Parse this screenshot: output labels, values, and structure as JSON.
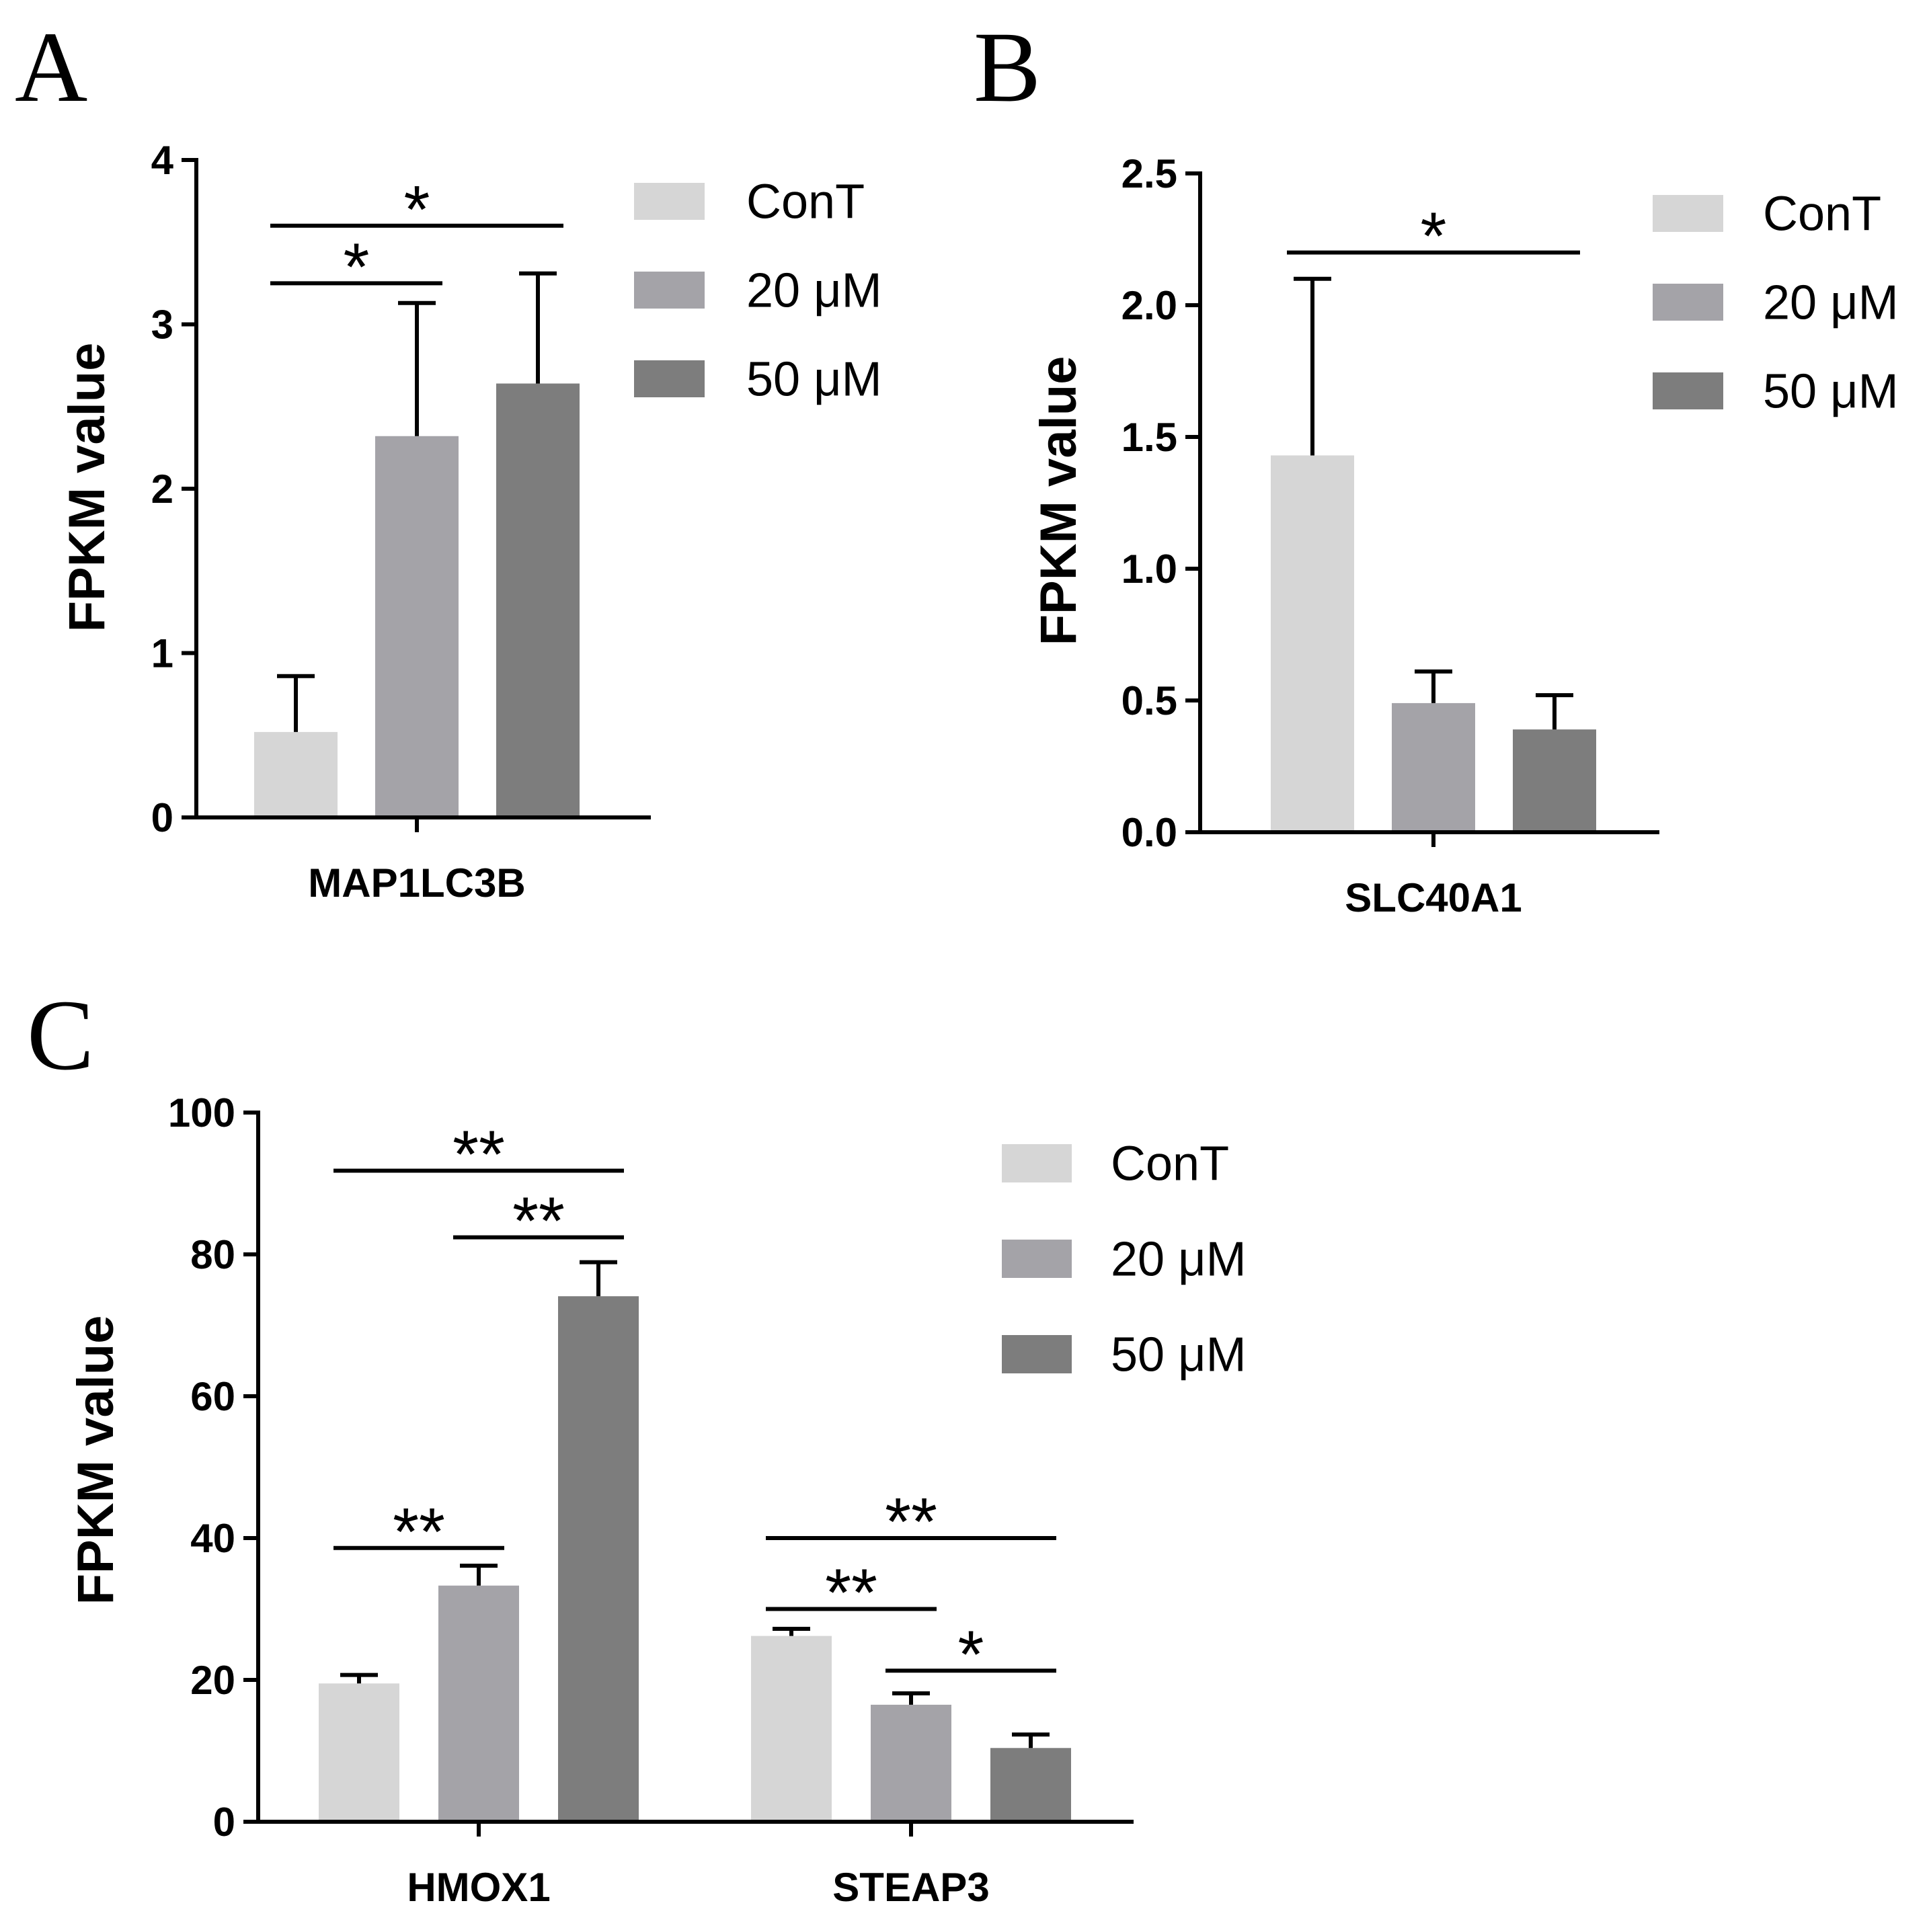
{
  "colors": {
    "ConT": "#d6d6d6",
    "20 μM": "#a4a3a8",
    "50 μM": "#7d7d7d",
    "axis": "#000000"
  },
  "chart_data": [
    {
      "panel": "A",
      "type": "bar",
      "ylabel": "FPKM value",
      "ylim": [
        0,
        4
      ],
      "yticks": [
        "0",
        "1",
        "2",
        "3",
        "4"
      ],
      "categories": [
        "MAP1LC3B"
      ],
      "legend": [
        "ConT",
        "20 μM",
        "50 μM"
      ],
      "series": [
        {
          "name": "ConT",
          "values": [
            0.52
          ],
          "errors": [
            0.34
          ]
        },
        {
          "name": "20 μM",
          "values": [
            2.32
          ],
          "errors": [
            0.81
          ]
        },
        {
          "name": "50 μM",
          "values": [
            2.64
          ],
          "errors": [
            0.67
          ]
        }
      ],
      "significance": [
        {
          "label": "*",
          "category": 0,
          "from": 0,
          "to": 1,
          "y": 3.25
        },
        {
          "label": "*",
          "category": 0,
          "from": 0,
          "to": 2,
          "y": 3.6
        }
      ]
    },
    {
      "panel": "B",
      "type": "bar",
      "ylabel": "FPKM value",
      "ylim": [
        0,
        2.5
      ],
      "yticks": [
        "0.0",
        "0.5",
        "1.0",
        "1.5",
        "2.0",
        "2.5"
      ],
      "categories": [
        "SLC40A1"
      ],
      "legend": [
        "ConT",
        "20 μM",
        "50 μM"
      ],
      "series": [
        {
          "name": "ConT",
          "values": [
            1.43
          ],
          "errors": [
            0.67
          ]
        },
        {
          "name": "20 μM",
          "values": [
            0.49
          ],
          "errors": [
            0.12
          ]
        },
        {
          "name": "50 μM",
          "values": [
            0.39
          ],
          "errors": [
            0.13
          ]
        }
      ],
      "significance": [
        {
          "label": "*",
          "category": 0,
          "from": 0,
          "to": 2,
          "y": 2.2
        }
      ]
    },
    {
      "panel": "C",
      "type": "bar",
      "ylabel": "FPKM value",
      "ylim": [
        0,
        100
      ],
      "yticks": [
        "0",
        "20",
        "40",
        "60",
        "80",
        "100"
      ],
      "categories": [
        "HMOX1",
        "STEAP3"
      ],
      "legend": [
        "ConT",
        "20 μM",
        "50 μM"
      ],
      "series": [
        {
          "name": "ConT",
          "values": [
            19.5,
            26.2
          ],
          "errors": [
            1.2,
            1.0
          ]
        },
        {
          "name": "20 μM",
          "values": [
            33.3,
            16.5
          ],
          "errors": [
            2.8,
            1.6
          ]
        },
        {
          "name": "50 μM",
          "values": [
            74.1,
            10.4
          ],
          "errors": [
            4.8,
            1.9
          ]
        }
      ],
      "significance": [
        {
          "label": "**",
          "category": 0,
          "from": 0,
          "to": 1,
          "y": 38.6
        },
        {
          "label": "**",
          "category": 0,
          "from": 1,
          "to": 2,
          "y": 82.4
        },
        {
          "label": "**",
          "category": 0,
          "from": 0,
          "to": 2,
          "y": 91.8
        },
        {
          "label": "**",
          "category": 1,
          "from": 0,
          "to": 1,
          "y": 30.0
        },
        {
          "label": "*",
          "category": 1,
          "from": 1,
          "to": 2,
          "y": 21.3
        },
        {
          "label": "**",
          "category": 1,
          "from": 0,
          "to": 2,
          "y": 40.0
        }
      ]
    }
  ]
}
